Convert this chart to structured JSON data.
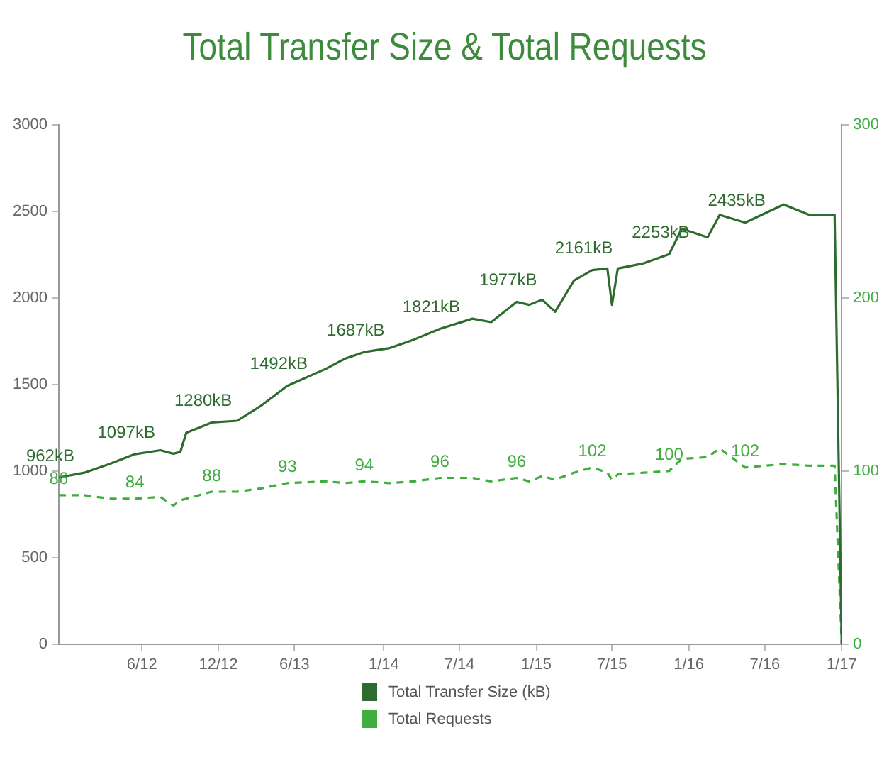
{
  "chart_data": {
    "type": "line",
    "title": "Total Transfer Size & Total Requests",
    "x": [
      "2011-11-15",
      "2012-01-15",
      "2012-03-15",
      "2012-05-15",
      "2012-07-15",
      "2012-08-15",
      "2012-09-01",
      "2012-09-15",
      "2012-11-15",
      "2013-01-15",
      "2013-03-15",
      "2013-05-15",
      "2013-08-15",
      "2013-10-01",
      "2013-11-15",
      "2014-01-15",
      "2014-03-15",
      "2014-05-15",
      "2014-08-01",
      "2014-09-15",
      "2014-11-15",
      "2014-12-15",
      "2015-01-15",
      "2015-02-15",
      "2015-04-01",
      "2015-05-15",
      "2015-06-20",
      "2015-07-01",
      "2015-07-15",
      "2015-09-15",
      "2015-11-15",
      "2015-12-15",
      "2016-02-15",
      "2016-03-15",
      "2016-05-15",
      "2016-08-15",
      "2016-10-15",
      "2016-12-15",
      "2017-01-01"
    ],
    "series": [
      {
        "name": "Total Transfer Size (kB)",
        "color": "#2e6b2e",
        "line_style": "solid",
        "values": [
          962,
          990,
          1040,
          1097,
          1120,
          1100,
          1110,
          1220,
          1280,
          1290,
          1380,
          1492,
          1590,
          1650,
          1687,
          1710,
          1760,
          1821,
          1880,
          1860,
          1977,
          1960,
          1990,
          1920,
          2100,
          2161,
          2170,
          1960,
          2170,
          2200,
          2253,
          2400,
          2350,
          2480,
          2435,
          2540,
          2480,
          2480,
          0
        ],
        "value_labels": [
          "962kB",
          null,
          null,
          "1097kB",
          null,
          null,
          null,
          null,
          "1280kB",
          null,
          null,
          "1492kB",
          null,
          null,
          "1687kB",
          null,
          null,
          "1821kB",
          null,
          null,
          "1977kB",
          null,
          null,
          null,
          null,
          "2161kB",
          null,
          null,
          null,
          null,
          "2253kB",
          null,
          null,
          null,
          "2435kB",
          null,
          null,
          null,
          null
        ]
      },
      {
        "name": "Total Requests",
        "color": "#3fae3f",
        "axis": "y2",
        "line_style": "dashed",
        "values": [
          86,
          86,
          84,
          84,
          85,
          80,
          83,
          84,
          88,
          88,
          90,
          93,
          94,
          93,
          94,
          93,
          94,
          96,
          96,
          94,
          96,
          94,
          97,
          95,
          99,
          102,
          99,
          95,
          98,
          99,
          100,
          107,
          108,
          113,
          102,
          104,
          103,
          103,
          0
        ],
        "value_labels": [
          "86",
          null,
          null,
          "84",
          null,
          null,
          null,
          null,
          "88",
          null,
          null,
          "93",
          null,
          null,
          "94",
          null,
          null,
          "96",
          null,
          null,
          "96",
          null,
          null,
          null,
          null,
          "102",
          null,
          null,
          null,
          null,
          "100",
          null,
          null,
          null,
          "102",
          null,
          null,
          null,
          null
        ]
      }
    ],
    "xlim": [
      "2011-11-15",
      "2017-01-01"
    ],
    "xticks": [
      {
        "value": "2012-06-01",
        "label": "6/12"
      },
      {
        "value": "2012-12-01",
        "label": "12/12"
      },
      {
        "value": "2013-06-01",
        "label": "6/13"
      },
      {
        "value": "2014-01-01",
        "label": "1/14"
      },
      {
        "value": "2014-07-01",
        "label": "7/14"
      },
      {
        "value": "2015-01-01",
        "label": "1/15"
      },
      {
        "value": "2015-07-01",
        "label": "7/15"
      },
      {
        "value": "2016-01-01",
        "label": "1/16"
      },
      {
        "value": "2016-07-01",
        "label": "7/16"
      },
      {
        "value": "2017-01-01",
        "label": "1/17"
      }
    ],
    "ylim": [
      0,
      3000
    ],
    "yticks": [
      0,
      500,
      1000,
      1500,
      2000,
      2500,
      3000
    ],
    "y2lim": [
      0,
      300
    ],
    "y2ticks": [
      0,
      100,
      200,
      300
    ],
    "grid": false,
    "legend": "bottom",
    "marker": "none"
  }
}
